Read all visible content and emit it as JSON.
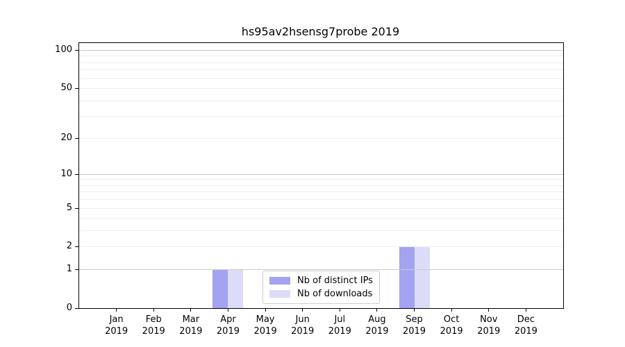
{
  "chart_data": {
    "type": "bar",
    "title": "hs95av2hsensg7probe 2019",
    "categories": [
      "Jan",
      "Feb",
      "Mar",
      "Apr",
      "May",
      "Jun",
      "Jul",
      "Aug",
      "Sep",
      "Oct",
      "Nov",
      "Dec"
    ],
    "year_label": "2019",
    "series": [
      {
        "name": "Nb of distinct IPs",
        "color": "#a3a3f2",
        "values": [
          0,
          0,
          0,
          1,
          0,
          0,
          0,
          0,
          2,
          0,
          0,
          0
        ]
      },
      {
        "name": "Nb of downloads",
        "color": "#dcdcf9",
        "values": [
          0,
          0,
          0,
          1,
          0,
          0,
          0,
          0,
          2,
          0,
          0,
          0
        ]
      }
    ],
    "yticks": [
      0,
      1,
      2,
      5,
      10,
      20,
      50,
      100
    ],
    "grid_major": [
      1,
      10,
      100
    ],
    "grid_minor": [
      2,
      3,
      4,
      5,
      6,
      7,
      8,
      9,
      20,
      30,
      40,
      50,
      60,
      70,
      80,
      90
    ],
    "scale": "log1p",
    "ylim": [
      0,
      113
    ],
    "xlabel": "",
    "ylabel": "",
    "legend_position": "bottom-center",
    "grid": "on"
  },
  "colors": {
    "background": "#ffffff",
    "spine": "#000000",
    "grid_major": "#c9c9c9",
    "grid_minor": "#ededed",
    "text": "#000000",
    "legend_border": "#cccccc"
  }
}
